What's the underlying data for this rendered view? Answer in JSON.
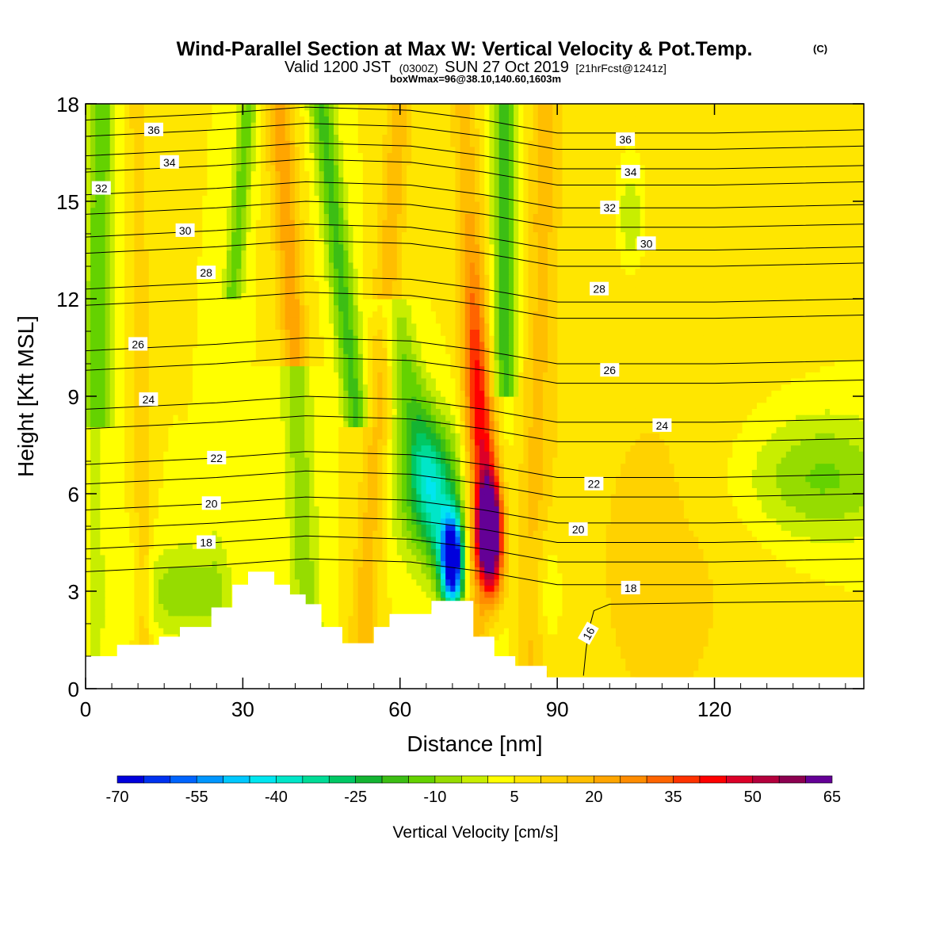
{
  "header": {
    "title": "Wind-Parallel Section at Max W: Vertical Velocity & Pot.Temp.",
    "title_mark": "(C)",
    "valid_prefix": "Valid 1200 JST",
    "valid_utc": "(0300Z)",
    "valid_date": "SUN 27 Oct 2019",
    "forecast": "[21hrFcst@1241z]",
    "box_info": "boxWmax=96@38.10,140.60,1603m"
  },
  "chart_data": {
    "type": "heatmap",
    "xlabel": "Distance [nm]",
    "ylabel": "Height [Kft MSL]",
    "xlim": [
      0,
      148.5
    ],
    "ylim": [
      0,
      18
    ],
    "x_ticks": [
      0,
      30,
      60,
      90,
      120
    ],
    "y_ticks": [
      0,
      3,
      6,
      9,
      12,
      15,
      18
    ],
    "colorbar": {
      "label": "Vertical Velocity [cm/s]",
      "tick_values": [
        -70,
        -55,
        -40,
        -25,
        -10,
        5,
        20,
        35,
        50,
        65
      ],
      "bin_edges": [
        -70,
        -65,
        -60,
        -55,
        -50,
        -45,
        -40,
        -35,
        -30,
        -25,
        -20,
        -15,
        -10,
        -5,
        0,
        5,
        10,
        15,
        20,
        25,
        30,
        35,
        40,
        45,
        50,
        55,
        60,
        65
      ],
      "colors": [
        "#0000dc",
        "#0032f0",
        "#0064ff",
        "#0096ff",
        "#00c8ff",
        "#00e6f0",
        "#00e6c8",
        "#00dc96",
        "#00c864",
        "#14b432",
        "#3cbe14",
        "#64d200",
        "#96dc00",
        "#c8ee00",
        "#ffff00",
        "#ffe600",
        "#ffd200",
        "#ffbe00",
        "#ffa500",
        "#ff8c00",
        "#ff6400",
        "#ff3200",
        "#ff0000",
        "#dc0028",
        "#b4003c",
        "#8c0050",
        "#640096"
      ]
    },
    "features": [
      {
        "kind": "updraft_core",
        "x": 77,
        "z": 4.8,
        "w": 65
      },
      {
        "kind": "downdraft_core",
        "x": 70,
        "z": 4.0,
        "w": -70
      },
      {
        "kind": "updraft_band",
        "x_top": 74,
        "z_top": 12,
        "w": 30
      },
      {
        "kind": "updraft_band",
        "x_top": 40,
        "z_top": 18,
        "w": 20
      },
      {
        "kind": "updraft_band",
        "x_top": 60,
        "z_top": 18,
        "w": 20
      },
      {
        "kind": "downdraft_band",
        "x_top": 51,
        "z_top": 18,
        "w": -20
      },
      {
        "kind": "downdraft_band",
        "x_top": 80,
        "z_top": 18,
        "w": -25
      },
      {
        "kind": "downdraft_area",
        "x": 140,
        "z": 6.5,
        "w": -12
      }
    ],
    "terrain_kft": [
      [
        0,
        1.0
      ],
      [
        6,
        1.0
      ],
      [
        6,
        1.35
      ],
      [
        14,
        1.35
      ],
      [
        14,
        1.6
      ],
      [
        18,
        1.6
      ],
      [
        18,
        1.9
      ],
      [
        24,
        1.9
      ],
      [
        24,
        2.5
      ],
      [
        28,
        2.5
      ],
      [
        28,
        3.2
      ],
      [
        31,
        3.2
      ],
      [
        31,
        3.6
      ],
      [
        36,
        3.6
      ],
      [
        36,
        3.2
      ],
      [
        39,
        3.2
      ],
      [
        39,
        2.9
      ],
      [
        42,
        2.9
      ],
      [
        42,
        2.6
      ],
      [
        45,
        2.6
      ],
      [
        45,
        1.9
      ],
      [
        49,
        1.9
      ],
      [
        49,
        1.4
      ],
      [
        55,
        1.4
      ],
      [
        55,
        1.9
      ],
      [
        58,
        1.9
      ],
      [
        58,
        2.3
      ],
      [
        66,
        2.3
      ],
      [
        66,
        2.7
      ],
      [
        74,
        2.7
      ],
      [
        74,
        1.6
      ],
      [
        78,
        1.6
      ],
      [
        78,
        1.0
      ],
      [
        82,
        1.0
      ],
      [
        82,
        0.7
      ],
      [
        88,
        0.7
      ],
      [
        88,
        0.35
      ],
      [
        148.5,
        0.35
      ]
    ],
    "contours": [
      {
        "label": "16",
        "label_pos": [
          96,
          1.7
        ],
        "rotation": -60,
        "points": [
          [
            95,
            0.4
          ],
          [
            95.5,
            1.2
          ],
          [
            96,
            1.8
          ],
          [
            97,
            2.4
          ],
          [
            100,
            2.6
          ],
          [
            120,
            2.65
          ],
          [
            148.5,
            2.7
          ]
        ]
      },
      {
        "label": "18",
        "label_pos": [
          104,
          3.1
        ],
        "points": [
          [
            0,
            3.6
          ],
          [
            25,
            3.8
          ],
          [
            42,
            4.0
          ],
          [
            62,
            3.9
          ],
          [
            76,
            3.6
          ],
          [
            90,
            3.2
          ],
          [
            120,
            3.2
          ],
          [
            148.5,
            3.3
          ]
        ]
      },
      {
        "label": "18",
        "label_pos": [
          23,
          4.5
        ],
        "points": [
          [
            0,
            4.3
          ],
          [
            25,
            4.5
          ],
          [
            42,
            4.7
          ],
          [
            62,
            4.6
          ],
          [
            76,
            4.3
          ],
          [
            90,
            3.9
          ],
          [
            120,
            3.9
          ],
          [
            148.5,
            4.0
          ]
        ]
      },
      {
        "label": "20",
        "label_pos": [
          24,
          5.7
        ],
        "points": [
          [
            0,
            5.5
          ],
          [
            25,
            5.7
          ],
          [
            42,
            5.9
          ],
          [
            62,
            5.8
          ],
          [
            76,
            5.5
          ],
          [
            90,
            5.1
          ],
          [
            120,
            5.1
          ],
          [
            148.5,
            5.2
          ]
        ]
      },
      {
        "label": "20",
        "label_pos": [
          94,
          4.9
        ],
        "points": [
          [
            0,
            4.9
          ],
          [
            25,
            5.1
          ],
          [
            42,
            5.3
          ],
          [
            62,
            5.2
          ],
          [
            76,
            4.9
          ],
          [
            90,
            4.5
          ],
          [
            120,
            4.5
          ],
          [
            148.5,
            4.6
          ]
        ]
      },
      {
        "label": "22",
        "label_pos": [
          25,
          7.1
        ],
        "points": [
          [
            0,
            6.9
          ],
          [
            25,
            7.1
          ],
          [
            42,
            7.3
          ],
          [
            62,
            7.2
          ],
          [
            76,
            6.9
          ],
          [
            90,
            6.5
          ],
          [
            120,
            6.5
          ],
          [
            148.5,
            6.6
          ]
        ]
      },
      {
        "label": "22",
        "label_pos": [
          97,
          6.3
        ],
        "points": [
          [
            0,
            6.3
          ],
          [
            25,
            6.5
          ],
          [
            42,
            6.7
          ],
          [
            62,
            6.6
          ],
          [
            76,
            6.3
          ],
          [
            90,
            5.9
          ],
          [
            120,
            5.9
          ],
          [
            148.5,
            6.0
          ]
        ]
      },
      {
        "label": "24",
        "label_pos": [
          12,
          8.9
        ],
        "points": [
          [
            0,
            8.6
          ],
          [
            25,
            8.8
          ],
          [
            42,
            9.0
          ],
          [
            62,
            8.9
          ],
          [
            76,
            8.6
          ],
          [
            90,
            8.2
          ],
          [
            120,
            8.2
          ],
          [
            148.5,
            8.3
          ]
        ]
      },
      {
        "label": "24",
        "label_pos": [
          110,
          8.1
        ],
        "points": [
          [
            0,
            8.0
          ],
          [
            25,
            8.2
          ],
          [
            42,
            8.4
          ],
          [
            62,
            8.3
          ],
          [
            76,
            8.0
          ],
          [
            90,
            7.6
          ],
          [
            120,
            7.6
          ],
          [
            148.5,
            7.7
          ]
        ]
      },
      {
        "label": "26",
        "label_pos": [
          10,
          10.6
        ],
        "points": [
          [
            0,
            10.4
          ],
          [
            25,
            10.6
          ],
          [
            42,
            10.8
          ],
          [
            62,
            10.7
          ],
          [
            76,
            10.4
          ],
          [
            90,
            10.0
          ],
          [
            120,
            10.0
          ],
          [
            148.5,
            10.1
          ]
        ]
      },
      {
        "label": "26",
        "label_pos": [
          100,
          9.8
        ],
        "points": [
          [
            0,
            9.8
          ],
          [
            25,
            10.0
          ],
          [
            42,
            10.2
          ],
          [
            62,
            10.1
          ],
          [
            76,
            9.8
          ],
          [
            90,
            9.4
          ],
          [
            120,
            9.4
          ],
          [
            148.5,
            9.5
          ]
        ]
      },
      {
        "label": "28",
        "label_pos": [
          23,
          12.8
        ],
        "points": [
          [
            0,
            12.3
          ],
          [
            25,
            12.5
          ],
          [
            42,
            12.7
          ],
          [
            62,
            12.6
          ],
          [
            76,
            12.3
          ],
          [
            90,
            11.9
          ],
          [
            120,
            11.9
          ],
          [
            148.5,
            12.0
          ]
        ]
      },
      {
        "label": "28",
        "label_pos": [
          98,
          12.3
        ],
        "points": [
          [
            0,
            11.8
          ],
          [
            25,
            12.0
          ],
          [
            42,
            12.2
          ],
          [
            62,
            12.1
          ],
          [
            76,
            11.8
          ],
          [
            90,
            11.4
          ],
          [
            120,
            11.4
          ],
          [
            148.5,
            11.5
          ]
        ]
      },
      {
        "label": "30",
        "label_pos": [
          19,
          14.1
        ],
        "points": [
          [
            0,
            13.9
          ],
          [
            25,
            14.1
          ],
          [
            42,
            14.3
          ],
          [
            62,
            14.2
          ],
          [
            76,
            13.9
          ],
          [
            90,
            13.5
          ],
          [
            120,
            13.5
          ],
          [
            148.5,
            13.6
          ]
        ]
      },
      {
        "label": "30",
        "label_pos": [
          107,
          13.7
        ],
        "points": [
          [
            0,
            13.4
          ],
          [
            25,
            13.6
          ],
          [
            42,
            13.8
          ],
          [
            62,
            13.7
          ],
          [
            76,
            13.4
          ],
          [
            90,
            13.0
          ],
          [
            120,
            13.0
          ],
          [
            148.5,
            13.1
          ]
        ]
      },
      {
        "label": "32",
        "label_pos": [
          3,
          15.4
        ],
        "points": [
          [
            0,
            15.2
          ],
          [
            25,
            15.4
          ],
          [
            42,
            15.6
          ],
          [
            62,
            15.5
          ],
          [
            76,
            15.2
          ],
          [
            90,
            14.8
          ],
          [
            120,
            14.8
          ],
          [
            148.5,
            14.9
          ]
        ]
      },
      {
        "label": "32",
        "label_pos": [
          100,
          14.8
        ],
        "points": [
          [
            0,
            14.6
          ],
          [
            25,
            14.8
          ],
          [
            42,
            15.0
          ],
          [
            62,
            14.9
          ],
          [
            76,
            14.6
          ],
          [
            90,
            14.2
          ],
          [
            120,
            14.2
          ],
          [
            148.5,
            14.3
          ]
        ]
      },
      {
        "label": "34",
        "label_pos": [
          16,
          16.2
        ],
        "points": [
          [
            0,
            16.4
          ],
          [
            25,
            16.6
          ],
          [
            42,
            16.8
          ],
          [
            62,
            16.7
          ],
          [
            76,
            16.4
          ],
          [
            90,
            16.0
          ],
          [
            120,
            16.0
          ],
          [
            148.5,
            16.1
          ]
        ]
      },
      {
        "label": "34",
        "label_pos": [
          104,
          15.9
        ],
        "points": [
          [
            0,
            15.9
          ],
          [
            25,
            16.1
          ],
          [
            42,
            16.3
          ],
          [
            62,
            16.2
          ],
          [
            76,
            15.9
          ],
          [
            90,
            15.5
          ],
          [
            120,
            15.5
          ],
          [
            148.5,
            15.6
          ]
        ]
      },
      {
        "label": "36",
        "label_pos": [
          13,
          17.2
        ],
        "points": [
          [
            0,
            17.5
          ],
          [
            25,
            17.7
          ],
          [
            42,
            17.9
          ],
          [
            62,
            17.8
          ],
          [
            76,
            17.5
          ],
          [
            90,
            17.1
          ],
          [
            120,
            17.1
          ],
          [
            148.5,
            17.2
          ]
        ]
      },
      {
        "label": "36",
        "label_pos": [
          103,
          16.9
        ],
        "points": [
          [
            0,
            17.0
          ],
          [
            25,
            17.2
          ],
          [
            42,
            17.4
          ],
          [
            62,
            17.3
          ],
          [
            76,
            17.0
          ],
          [
            90,
            16.6
          ],
          [
            120,
            16.6
          ],
          [
            148.5,
            16.7
          ]
        ]
      }
    ]
  }
}
